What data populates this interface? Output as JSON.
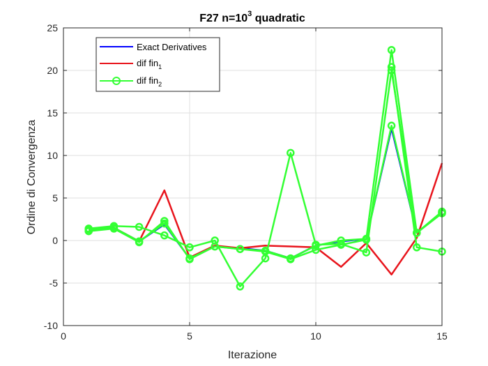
{
  "chart_data": {
    "type": "line",
    "title": "F27 n=10",
    "title_superscript": "3",
    "title_suffix": " quadratic",
    "xlabel": "Iterazione",
    "ylabel": "Ordine di Convergenza",
    "xlim": [
      0,
      15
    ],
    "ylim": [
      -10,
      25
    ],
    "xticks": [
      "0",
      "5",
      "10",
      "15"
    ],
    "yticks": [
      "-10",
      "-5",
      "0",
      "5",
      "10",
      "15",
      "20",
      "25"
    ],
    "grid": true,
    "legend_position": "top-left",
    "legend": [
      {
        "label": "Exact Derivatives",
        "sub": "",
        "color": "#0000ff",
        "marker": "none"
      },
      {
        "label": "dif fin",
        "sub": "1",
        "color": "#e8141c",
        "marker": "none"
      },
      {
        "label": "dif fin",
        "sub": "2",
        "color": "#33ff33",
        "marker": "circle"
      }
    ],
    "series": [
      {
        "color": "#0000ff",
        "marker": "none",
        "x": [
          1,
          2,
          3,
          4,
          5,
          6,
          7,
          8,
          9,
          10,
          11,
          12,
          13,
          14,
          15
        ],
        "y": [
          1.3,
          1.5,
          -0.1,
          1.9,
          -2.1,
          -0.7,
          -0.9,
          -1.2,
          -2.1,
          -0.6,
          -0.1,
          0.2,
          13.2,
          0.9,
          3.3
        ]
      },
      {
        "color": "#e8141c",
        "marker": "none",
        "x": [
          1,
          2,
          3,
          4,
          5,
          6,
          7,
          8,
          9,
          10,
          11,
          12,
          13,
          14,
          15
        ],
        "y": [
          1.3,
          1.5,
          -0.1,
          5.9,
          -2.0,
          -0.6,
          -0.9,
          -0.6,
          -0.7,
          -0.8,
          -3.1,
          -0.3,
          -4.0,
          0.3,
          9.1
        ]
      },
      {
        "color": "#33ff33",
        "marker": "circle",
        "x": [
          1,
          2,
          3,
          4,
          5,
          6,
          7,
          8,
          9,
          10,
          11,
          12,
          13,
          14,
          15
        ],
        "y": [
          1.1,
          1.4,
          -0.2,
          2.3,
          -2.2,
          -0.7,
          -1.0,
          -1.3,
          -2.2,
          -1.1,
          -0.5,
          0.1,
          13.5,
          0.9,
          3.4
        ]
      },
      {
        "color": "#33ff33",
        "marker": "circle",
        "x": [
          1,
          2,
          3,
          4,
          5,
          6,
          7,
          8,
          9,
          10,
          11,
          12,
          13,
          14,
          15
        ],
        "y": [
          1.4,
          1.7,
          1.6,
          0.6,
          -0.8,
          0.0,
          -5.4,
          -2.1,
          10.3,
          -0.5,
          -0.4,
          -1.4,
          20.0,
          0.9,
          3.2
        ]
      },
      {
        "color": "#33ff33",
        "marker": "circle",
        "x": [
          1,
          2,
          3,
          4,
          5,
          6,
          7,
          8,
          9,
          10,
          11,
          12,
          13,
          14,
          15
        ],
        "y": [
          1.3,
          1.5,
          -0.1,
          2.0,
          -2.1,
          -0.7,
          -1.0,
          -1.2,
          -2.1,
          -0.6,
          0.0,
          0.2,
          22.4,
          0.9,
          3.3
        ]
      },
      {
        "color": "#33ff33",
        "marker": "circle",
        "x": [
          13,
          14,
          15
        ],
        "y": [
          20.4,
          -0.8,
          -1.3
        ]
      }
    ]
  }
}
